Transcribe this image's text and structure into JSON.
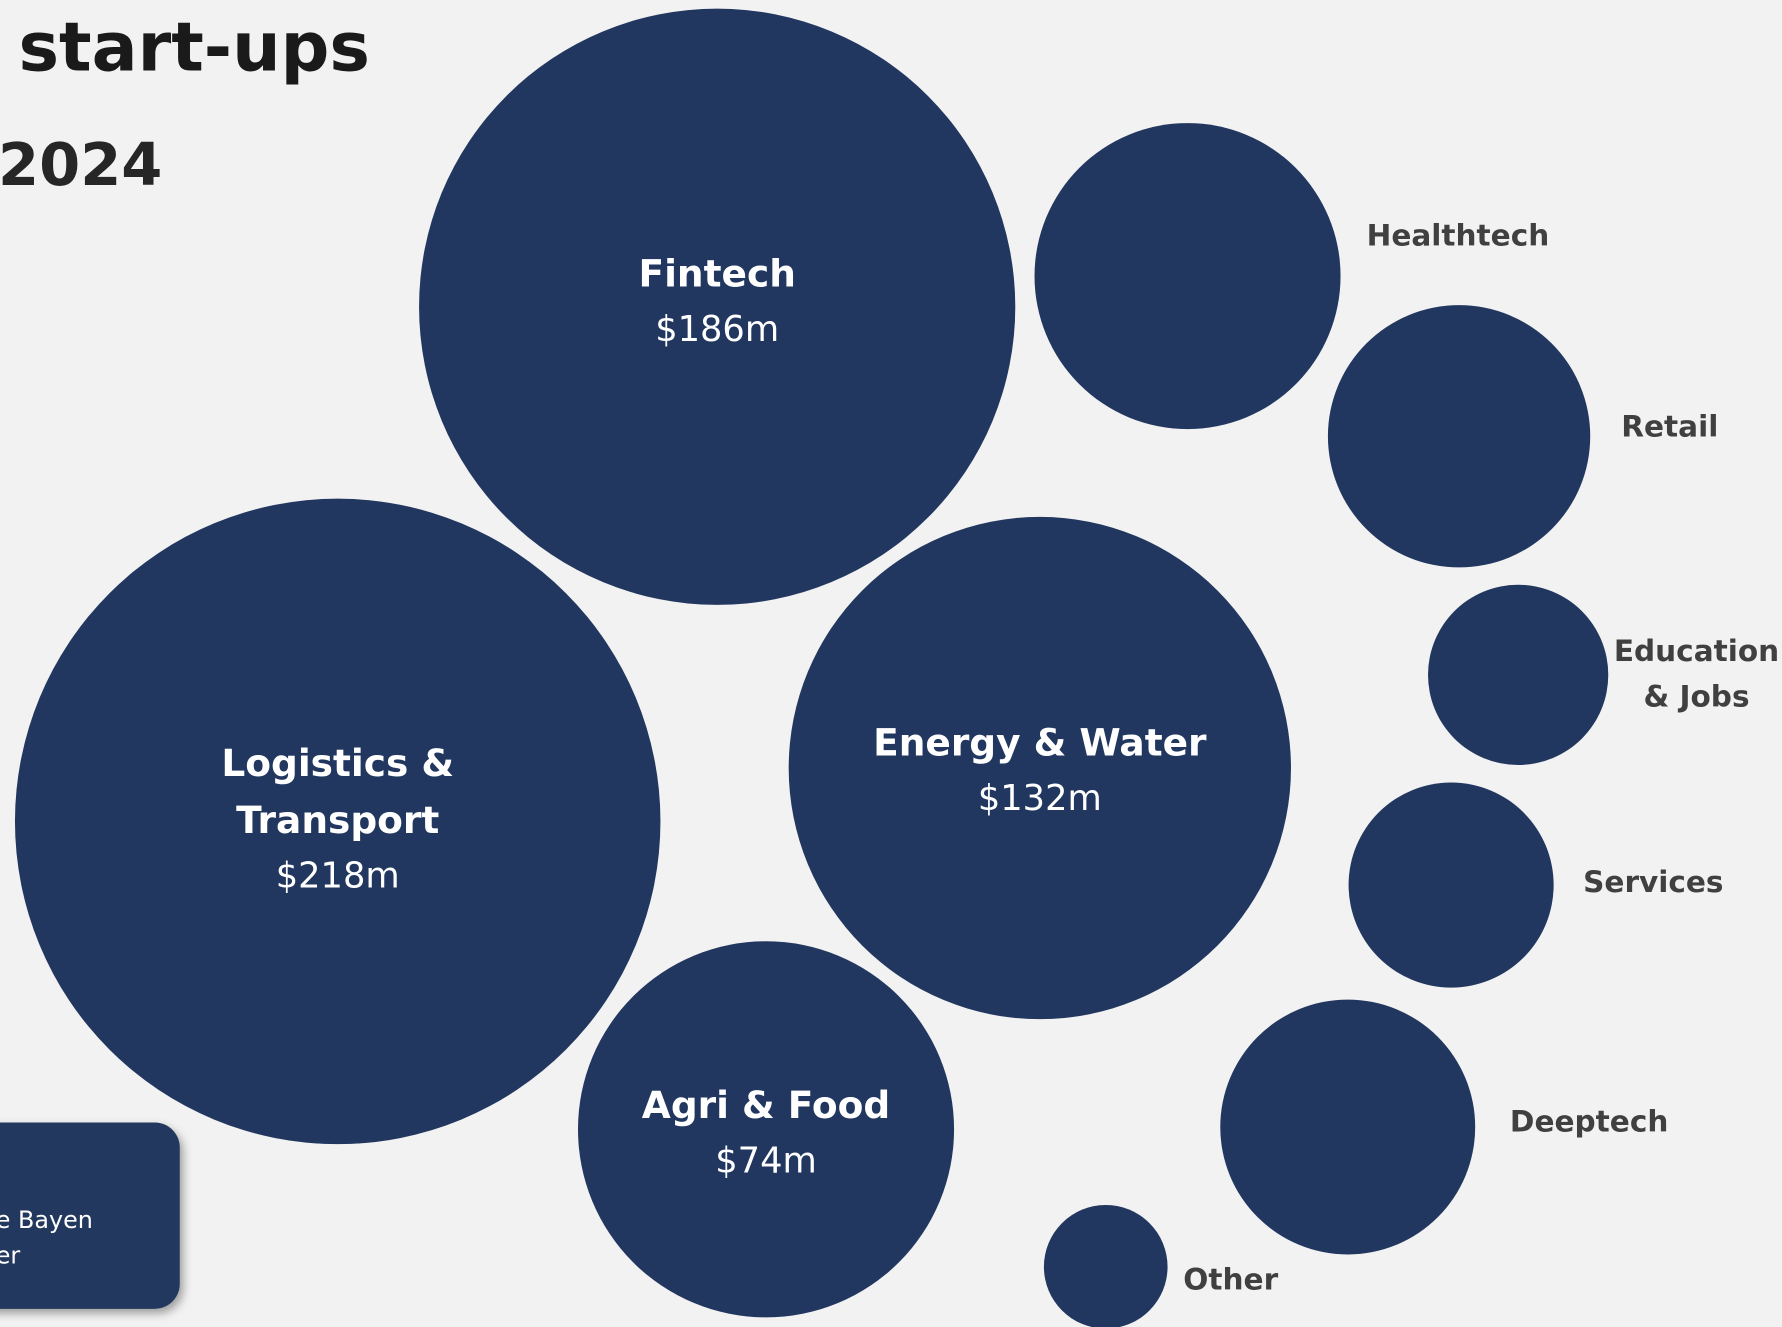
{
  "chart_data": {
    "type": "bubble",
    "title": "start-ups",
    "subtitle": "2024",
    "note_lines": [
      "e Bayen",
      "er"
    ],
    "color": "#22375f",
    "categories": [
      "Fintech",
      "Logistics & Transport",
      "Energy & Water",
      "Agri & Food",
      "Healthtech",
      "Retail",
      "Education & Jobs",
      "Services",
      "Deeptech",
      "Other"
    ],
    "values": [
      186,
      218,
      132,
      74,
      49,
      36,
      17,
      22,
      34,
      8
    ],
    "value_labels": [
      "$186m",
      "$218m",
      "$132m",
      "$74m",
      null,
      null,
      null,
      null,
      null,
      null
    ]
  }
}
